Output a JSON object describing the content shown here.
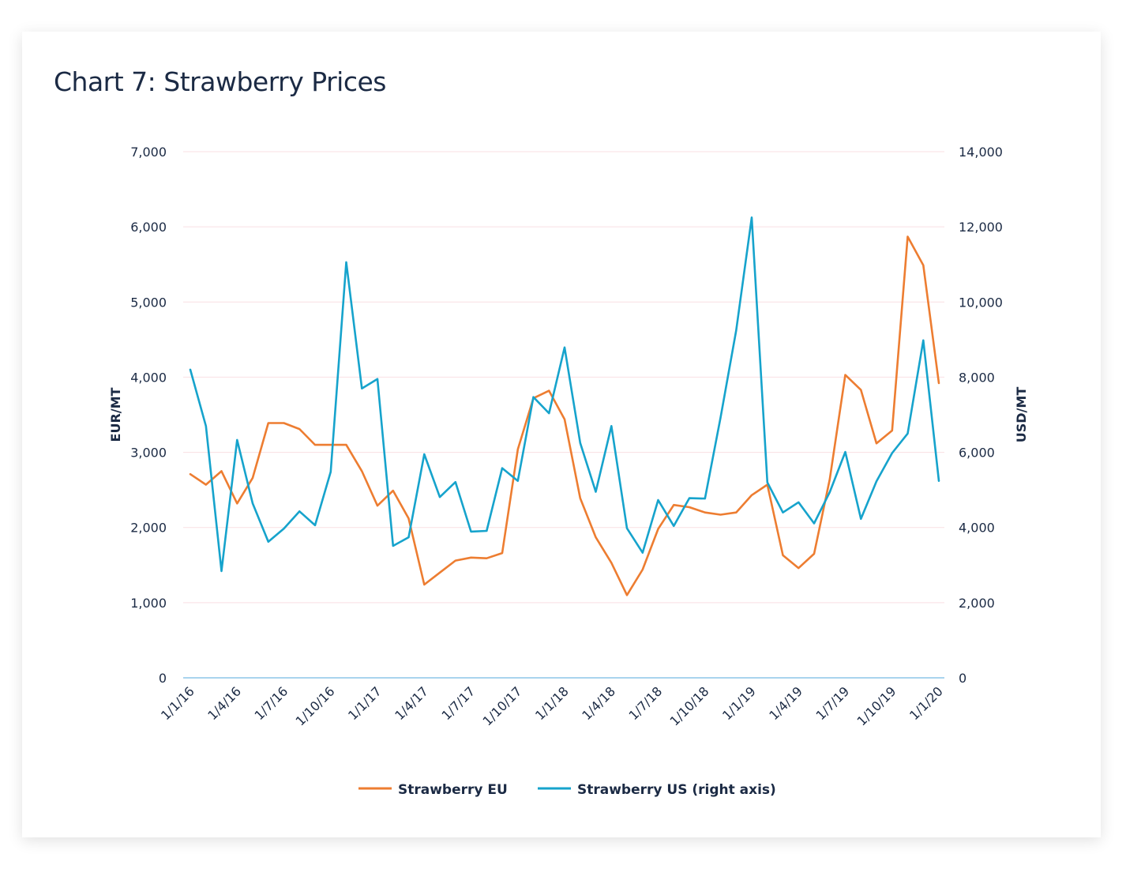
{
  "chart_data": {
    "type": "line",
    "title": "Chart 7: Strawberry Prices",
    "ylabel": "EUR/MT",
    "y2label": "USD/MT",
    "ylim": [
      0,
      7000
    ],
    "y2lim": [
      0,
      14000
    ],
    "yticks": [
      "0",
      "1,000",
      "2,000",
      "3,000",
      "4,000",
      "5,000",
      "6,000",
      "7,000"
    ],
    "y2ticks": [
      "0",
      "2,000",
      "4,000",
      "6,000",
      "8,000",
      "10,000",
      "12,000",
      "14,000"
    ],
    "xtick_labels": [
      "1/1/16",
      "1/4/16",
      "1/7/16",
      "1/10/16",
      "1/1/17",
      "1/4/17",
      "1/7/17",
      "1/10/17",
      "1/1/18",
      "1/4/18",
      "1/7/18",
      "1/10/18",
      "1/1/19",
      "1/4/19",
      "1/7/19",
      "1/10/19",
      "1/1/20"
    ],
    "x_start": "2016-01",
    "grid": true,
    "legend_position": "bottom",
    "series": [
      {
        "name": "Strawberry EU",
        "axis": "left",
        "color": "#ed7d31",
        "values": [
          2710,
          2570,
          2750,
          2320,
          2660,
          3390,
          3390,
          3310,
          3100,
          3100,
          3100,
          2750,
          2290,
          2490,
          2120,
          1240,
          1400,
          1560,
          1600,
          1590,
          1660,
          3040,
          3720,
          3820,
          3440,
          2390,
          1870,
          1530,
          1100,
          1440,
          1980,
          2300,
          2270,
          2200,
          2170,
          2200,
          2430,
          2570,
          1630,
          1460,
          1650,
          2640,
          4030,
          3830,
          3120,
          3290,
          5870,
          5490,
          3920
        ]
      },
      {
        "name": "Strawberry US (right axis)",
        "axis": "right",
        "color": "#16a3cc",
        "values": [
          8200,
          6700,
          2840,
          6330,
          4640,
          3620,
          3970,
          4430,
          4060,
          5480,
          11060,
          7700,
          7950,
          3510,
          3740,
          5950,
          4810,
          5210,
          3890,
          3910,
          5580,
          5240,
          7470,
          7040,
          8790,
          6250,
          4950,
          6700,
          3980,
          3330,
          4730,
          4040,
          4780,
          4770,
          6920,
          9240,
          12250,
          5200,
          4400,
          4670,
          4110,
          4940,
          6010,
          4230,
          5230,
          5980,
          6500,
          8980,
          5240
        ]
      }
    ]
  }
}
